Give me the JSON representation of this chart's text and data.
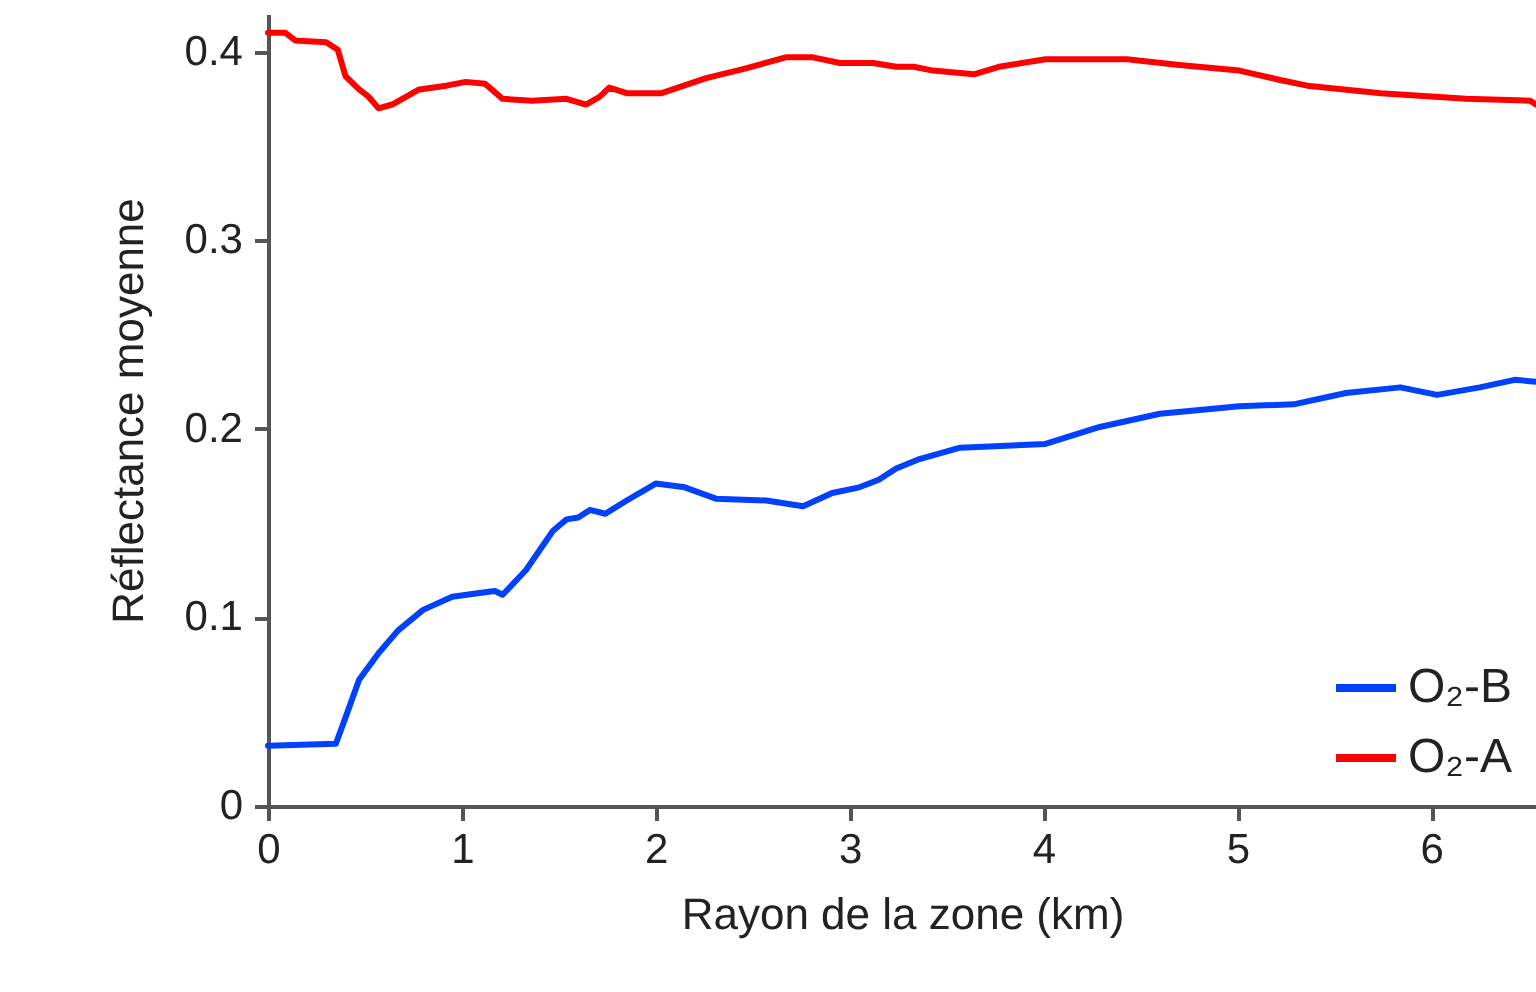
{
  "chart_data": {
    "type": "line",
    "xlabel": "Rayon de la zone (km)",
    "ylabel": "Réflectance moyenne",
    "xlim": [
      0,
      6.54
    ],
    "ylim": [
      0,
      0.42
    ],
    "xticks": [
      0,
      1,
      2,
      3,
      4,
      5,
      6
    ],
    "yticks": [
      0,
      0.1,
      0.2,
      0.3,
      0.4
    ],
    "grid": false,
    "legend": "bottom right",
    "marker": "none",
    "line_style": "solid",
    "series": [
      {
        "name": "O₂-B",
        "color": "#0040ff",
        "x": [
          0,
          0.35,
          0.4,
          0.47,
          0.57,
          0.67,
          0.8,
          0.95,
          1.09,
          1.17,
          1.21,
          1.33,
          1.47,
          1.54,
          1.6,
          1.66,
          1.74,
          1.85,
          2.0,
          2.15,
          2.31,
          2.57,
          2.76,
          2.91,
          3.05,
          3.15,
          3.24,
          3.36,
          3.57,
          4.01,
          4.29,
          4.6,
          5.01,
          5.29,
          5.56,
          5.84,
          6.03,
          6.25,
          6.43,
          6.54
        ],
        "values": [
          0.032,
          0.033,
          0.047,
          0.067,
          0.081,
          0.093,
          0.104,
          0.111,
          0.113,
          0.114,
          0.112,
          0.125,
          0.146,
          0.152,
          0.153,
          0.157,
          0.155,
          0.162,
          0.171,
          0.169,
          0.163,
          0.162,
          0.159,
          0.166,
          0.169,
          0.173,
          0.179,
          0.184,
          0.19,
          0.192,
          0.201,
          0.208,
          0.212,
          0.213,
          0.219,
          0.222,
          0.218,
          0.222,
          0.226,
          0.225
        ]
      },
      {
        "name": "O₂-A",
        "color": "#ff0000",
        "x": [
          0,
          0.09,
          0.14,
          0.3,
          0.36,
          0.4,
          0.47,
          0.52,
          0.57,
          0.64,
          0.78,
          0.92,
          1.02,
          1.12,
          1.21,
          1.36,
          1.54,
          1.64,
          1.71,
          1.76,
          1.85,
          2.03,
          2.26,
          2.46,
          2.67,
          2.81,
          2.95,
          3.12,
          3.24,
          3.33,
          3.43,
          3.64,
          3.77,
          4.01,
          4.43,
          4.7,
          5.01,
          5.22,
          5.36,
          5.74,
          6.18,
          6.51,
          6.54
        ],
        "values": [
          0.41,
          0.41,
          0.406,
          0.405,
          0.401,
          0.387,
          0.38,
          0.376,
          0.37,
          0.372,
          0.38,
          0.382,
          0.384,
          0.383,
          0.375,
          0.374,
          0.375,
          0.372,
          0.376,
          0.381,
          0.378,
          0.378,
          0.386,
          0.391,
          0.397,
          0.397,
          0.394,
          0.394,
          0.392,
          0.392,
          0.39,
          0.388,
          0.392,
          0.396,
          0.396,
          0.393,
          0.39,
          0.385,
          0.382,
          0.378,
          0.375,
          0.374,
          0.372
        ]
      }
    ]
  }
}
